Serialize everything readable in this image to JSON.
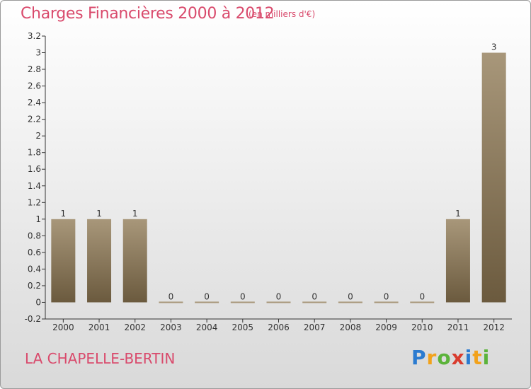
{
  "title": "Charges Financières 2000 à 2012",
  "subtitle": "(en milliers d'€)",
  "commune": "LA CHAPELLE-BERTIN",
  "logo": {
    "letters": [
      "P",
      "r",
      "o",
      "x",
      "i",
      "t",
      "i"
    ],
    "colors": [
      "#2b7bd0",
      "#f2a21b",
      "#5bb33a",
      "#d93c2e",
      "#2b7bd0",
      "#f2a21b",
      "#5bb33a"
    ]
  },
  "colors": {
    "accent": "#d94a6c",
    "bar_top": "#a8977a",
    "bar_bottom": "#6b5a3e",
    "axis": "#333333"
  },
  "chart_data": {
    "type": "bar",
    "categories": [
      "2000",
      "2001",
      "2002",
      "2003",
      "2004",
      "2005",
      "2006",
      "2007",
      "2008",
      "2009",
      "2010",
      "2011",
      "2012"
    ],
    "values": [
      1,
      1,
      1,
      0,
      0,
      0,
      0,
      0,
      0,
      0,
      0,
      1,
      3
    ],
    "data_labels": [
      "1",
      "1",
      "1",
      "0",
      "0",
      "0",
      "0",
      "0",
      "0",
      "0",
      "0",
      "1",
      "3"
    ],
    "yticks": [
      "-0.2",
      "0",
      "0.2",
      "0.4",
      "0.6",
      "0.8",
      "1",
      "1.2",
      "1.4",
      "1.6",
      "1.8",
      "2",
      "2.2",
      "2.4",
      "2.6",
      "2.8",
      "3",
      "3.2"
    ],
    "ylim": [
      -0.2,
      3.2
    ],
    "xlabel": "",
    "ylabel": "",
    "grid": false,
    "legend": "none"
  }
}
